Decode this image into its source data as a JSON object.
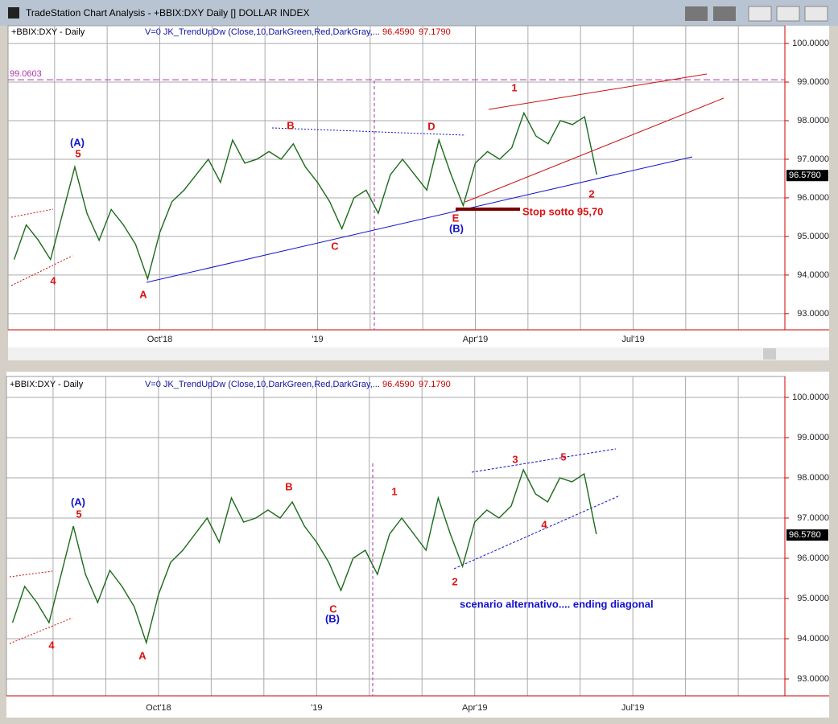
{
  "window": {
    "title": "TradeStation Chart Analysis - +BBIX:DXY Daily [] DOLLAR INDEX"
  },
  "chart_data": [
    {
      "type": "line",
      "symbol": "+BBIX:DXY - Daily",
      "indicator": "V=0  JK_TrendUpDw (Close,10,DarkGreen,Red,DarkGray,...",
      "indicator_values": [
        "96.4590",
        "97.1790"
      ],
      "categories": [
        null,
        null,
        null,
        null,
        null,
        null,
        null,
        null,
        null,
        null,
        null,
        null,
        "Oct'18",
        null,
        null,
        null,
        null,
        null,
        null,
        null,
        null,
        null,
        null,
        null,
        null,
        "'19",
        null,
        null,
        null,
        null,
        null,
        null,
        null,
        null,
        null,
        null,
        null,
        null,
        "Apr'19",
        null,
        null,
        null,
        null,
        null,
        null,
        null,
        null,
        null,
        null,
        null,
        null,
        "Jul'19",
        null,
        null,
        null,
        null,
        null,
        null,
        null,
        null,
        null,
        null,
        null,
        null
      ],
      "values": [
        94.4,
        95.3,
        94.9,
        94.4,
        95.6,
        96.8,
        95.6,
        94.9,
        95.7,
        95.3,
        94.8,
        93.9,
        95.1,
        95.9,
        96.2,
        96.6,
        97.0,
        96.4,
        97.5,
        96.9,
        97.0,
        97.2,
        97.0,
        97.4,
        96.8,
        96.4,
        95.9,
        95.2,
        96.0,
        96.2,
        95.6,
        96.6,
        97.0,
        96.6,
        96.2,
        97.5,
        96.6,
        95.8,
        96.9,
        97.2,
        97.0,
        97.3,
        98.2,
        97.6,
        97.4,
        98.0,
        97.9,
        98.1,
        96.6,
        null,
        null,
        null,
        null,
        null,
        null,
        null,
        null,
        null,
        null,
        null,
        null,
        null,
        null,
        null
      ],
      "color": "#1a6b1a",
      "ylim": [
        92.58,
        100.46
      ],
      "yticks": [
        {
          "value": 93,
          "label": "93.0000"
        },
        {
          "value": 94,
          "label": "94.0000"
        },
        {
          "value": 95,
          "label": "95.0000"
        },
        {
          "value": 96,
          "label": "96.0000"
        },
        {
          "value": 97,
          "label": "97.0000"
        },
        {
          "value": 98,
          "label": "98.0000"
        },
        {
          "value": 99,
          "label": "99.0000"
        },
        {
          "value": 100,
          "label": "100.0000"
        }
      ],
      "grid": true,
      "last_price": {
        "value": 96.578,
        "label": "96.5780"
      },
      "hline": 99.0603,
      "annotations": [
        {
          "text": "(A)",
          "color": "#1111cc"
        },
        {
          "text": "5",
          "color": "#dd1111"
        },
        {
          "text": "4",
          "color": "#dd1111"
        },
        {
          "text": "A",
          "color": "#dd1111"
        },
        {
          "text": "B",
          "color": "#dd1111"
        },
        {
          "text": "C",
          "color": "#dd1111"
        },
        {
          "text": "D",
          "color": "#dd1111"
        },
        {
          "text": "E",
          "color": "#dd1111"
        },
        {
          "text": "(B)",
          "color": "#1111cc"
        },
        {
          "text": "1",
          "color": "#dd1111"
        },
        {
          "text": "2",
          "color": "#dd1111"
        },
        {
          "text": "Stop sotto 95,70",
          "color": "#dd1111"
        }
      ]
    },
    {
      "type": "line",
      "symbol": "+BBIX:DXY - Daily",
      "indicator": "V=0  JK_TrendUpDw (Close,10,DarkGreen,Red,DarkGray,...",
      "indicator_values": [
        "96.4590",
        "97.1790"
      ],
      "categories": [
        null,
        null,
        null,
        null,
        null,
        null,
        null,
        null,
        null,
        null,
        null,
        null,
        "Oct'18",
        null,
        null,
        null,
        null,
        null,
        null,
        null,
        null,
        null,
        null,
        null,
        null,
        "'19",
        null,
        null,
        null,
        null,
        null,
        null,
        null,
        null,
        null,
        null,
        null,
        null,
        "Apr'19",
        null,
        null,
        null,
        null,
        null,
        null,
        null,
        null,
        null,
        null,
        null,
        null,
        "Jul'19",
        null,
        null,
        null,
        null,
        null,
        null,
        null,
        null,
        null,
        null,
        null,
        null
      ],
      "values": [
        94.4,
        95.3,
        94.9,
        94.4,
        95.6,
        96.8,
        95.6,
        94.9,
        95.7,
        95.3,
        94.8,
        93.9,
        95.1,
        95.9,
        96.2,
        96.6,
        97.0,
        96.4,
        97.5,
        96.9,
        97.0,
        97.2,
        97.0,
        97.4,
        96.8,
        96.4,
        95.9,
        95.2,
        96.0,
        96.2,
        95.6,
        96.6,
        97.0,
        96.6,
        96.2,
        97.5,
        96.6,
        95.8,
        96.9,
        97.2,
        97.0,
        97.3,
        98.2,
        97.6,
        97.4,
        98.0,
        97.9,
        98.1,
        96.6,
        null,
        null,
        null,
        null,
        null,
        null,
        null,
        null,
        null,
        null,
        null,
        null,
        null,
        null,
        null
      ],
      "color": "#1a6b1a",
      "ylim": [
        92.58,
        100.52
      ],
      "yticks": [
        {
          "value": 93,
          "label": "93.0000"
        },
        {
          "value": 94,
          "label": "94.0000"
        },
        {
          "value": 95,
          "label": "95.0000"
        },
        {
          "value": 96,
          "label": "96.0000"
        },
        {
          "value": 97,
          "label": "97.0000"
        },
        {
          "value": 98,
          "label": "98.0000"
        },
        {
          "value": 99,
          "label": "99.0000"
        },
        {
          "value": 100,
          "label": "100.0000"
        }
      ],
      "grid": true,
      "last_price": {
        "value": 96.578,
        "label": "96.5780"
      },
      "annotations": [
        {
          "text": "(A)",
          "color": "#1111cc"
        },
        {
          "text": "5",
          "color": "#dd1111"
        },
        {
          "text": "4",
          "color": "#dd1111"
        },
        {
          "text": "A",
          "color": "#dd1111"
        },
        {
          "text": "B",
          "color": "#dd1111"
        },
        {
          "text": "C",
          "color": "#dd1111"
        },
        {
          "text": "(B)",
          "color": "#1111cc"
        },
        {
          "text": "1",
          "color": "#dd1111"
        },
        {
          "text": "2",
          "color": "#dd1111"
        },
        {
          "text": "3",
          "color": "#dd1111"
        },
        {
          "text": "4",
          "color": "#dd1111"
        },
        {
          "text": "5",
          "color": "#dd1111"
        },
        {
          "text": "scenario alternativo.... ending diagonal",
          "color": "#1111cc"
        }
      ]
    }
  ]
}
